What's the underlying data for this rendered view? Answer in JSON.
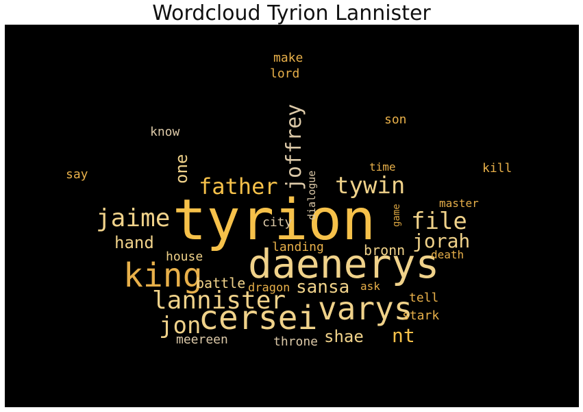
{
  "title": "Wordcloud Tyrion Lannister",
  "colors": {
    "background": "#000000",
    "palette": [
      "#f6c14a",
      "#e8b04a",
      "#f0d28a",
      "#dcc9a8",
      "#d9a441"
    ]
  },
  "words": [
    {
      "text": "tyrion",
      "color": "#f6c14a"
    },
    {
      "text": "daenerys",
      "color": "#f0d28a"
    },
    {
      "text": "cersei",
      "color": "#f0d28a"
    },
    {
      "text": "king",
      "color": "#e8b04a"
    },
    {
      "text": "varys",
      "color": "#f0d28a"
    },
    {
      "text": "lannister",
      "color": "#f0d28a"
    },
    {
      "text": "jaime",
      "color": "#f0d28a"
    },
    {
      "text": "file",
      "color": "#f0d28a"
    },
    {
      "text": "tywin",
      "color": "#f0d28a"
    },
    {
      "text": "father",
      "color": "#f6c14a"
    },
    {
      "text": "joffrey",
      "color": "#dcc9a8"
    },
    {
      "text": "jorah",
      "color": "#f0d28a"
    },
    {
      "text": "jon",
      "color": "#f0d28a"
    },
    {
      "text": "sansa",
      "color": "#f0d28a"
    },
    {
      "text": "shae",
      "color": "#f0d28a"
    },
    {
      "text": "nt",
      "color": "#f6c14a"
    },
    {
      "text": "hand",
      "color": "#f0d28a"
    },
    {
      "text": "one",
      "color": "#f0d28a"
    },
    {
      "text": "house",
      "color": "#f0d28a"
    },
    {
      "text": "battle",
      "color": "#f0d28a"
    },
    {
      "text": "dragon",
      "color": "#e8b04a"
    },
    {
      "text": "landing",
      "color": "#e8b04a"
    },
    {
      "text": "bronn",
      "color": "#f0d28a"
    },
    {
      "text": "city",
      "color": "#dcc9a8"
    },
    {
      "text": "meereen",
      "color": "#dcc9a8"
    },
    {
      "text": "throne",
      "color": "#dcc9a8"
    },
    {
      "text": "stark",
      "color": "#e8b04a"
    },
    {
      "text": "tell",
      "color": "#e8b04a"
    },
    {
      "text": "ask",
      "color": "#e8b04a"
    },
    {
      "text": "death",
      "color": "#e8b04a"
    },
    {
      "text": "master",
      "color": "#e8b04a"
    },
    {
      "text": "game",
      "color": "#d9a441"
    },
    {
      "text": "dialogue",
      "color": "#dcc9a8"
    },
    {
      "text": "time",
      "color": "#e8b04a"
    },
    {
      "text": "kill",
      "color": "#e8b04a"
    },
    {
      "text": "say",
      "color": "#e8b04a"
    },
    {
      "text": "know",
      "color": "#dcc9a8"
    },
    {
      "text": "son",
      "color": "#e8b04a"
    },
    {
      "text": "make",
      "color": "#e8b04a"
    },
    {
      "text": "lord",
      "color": "#e8b04a"
    }
  ]
}
